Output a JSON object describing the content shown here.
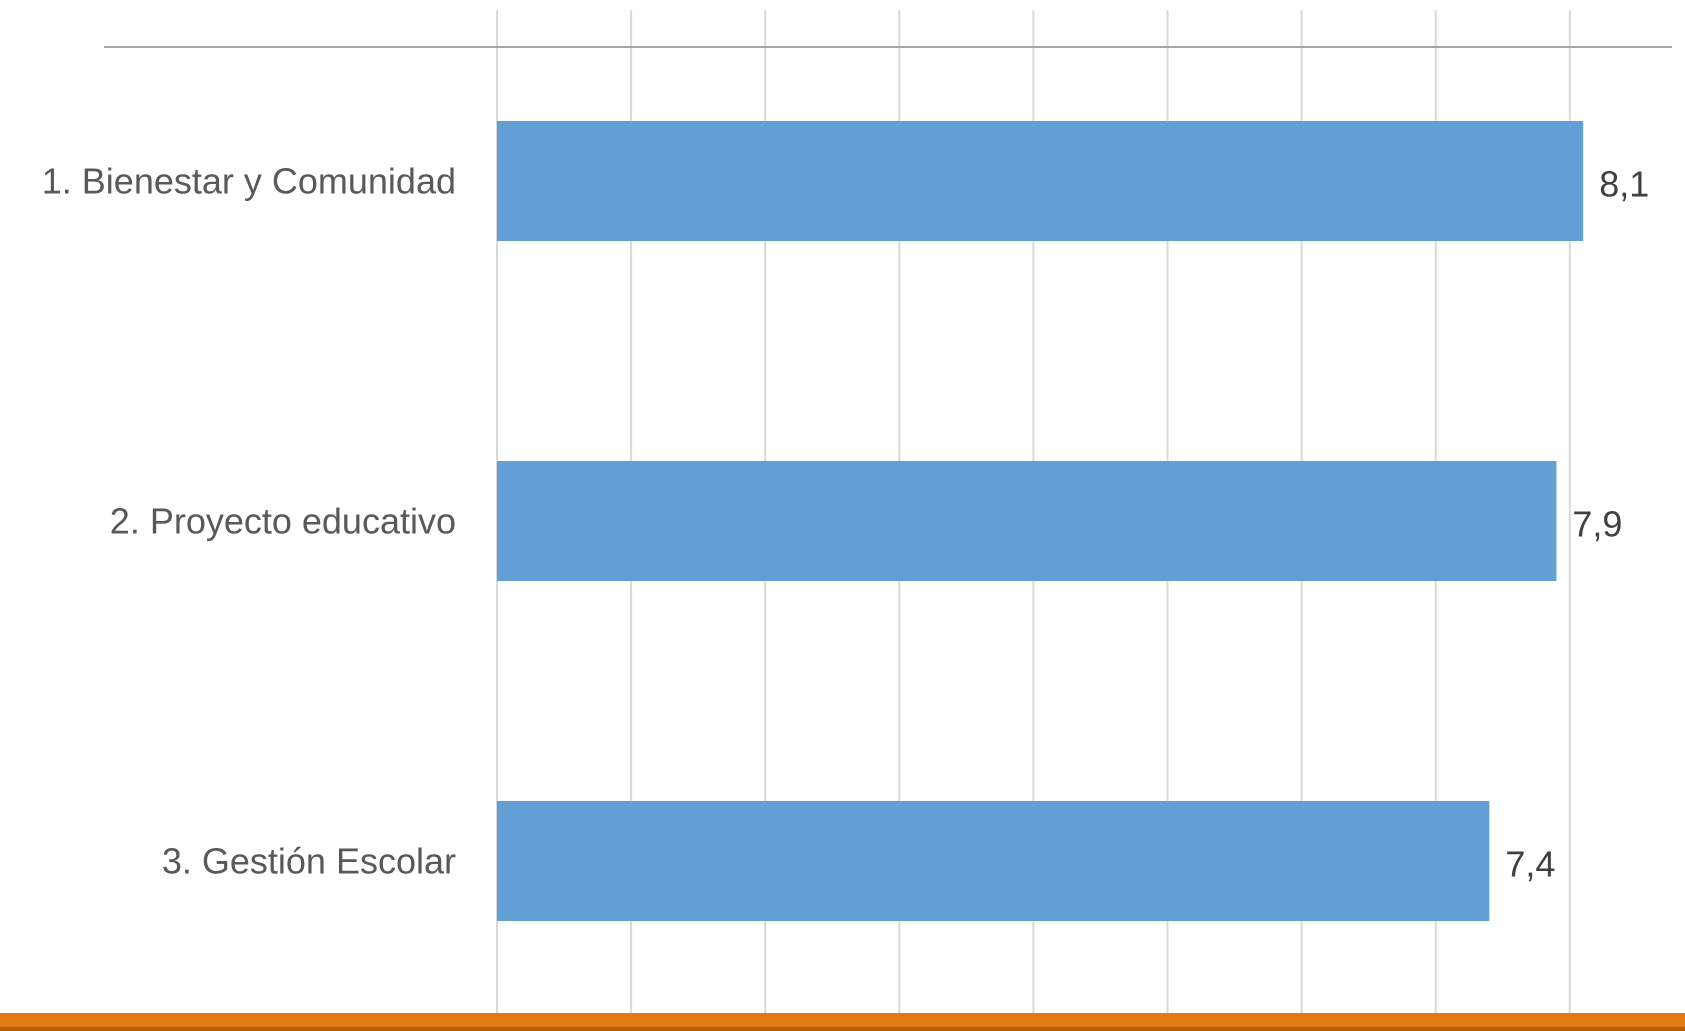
{
  "chart_data": {
    "type": "bar",
    "orientation": "horizontal",
    "categories": [
      "1. Bienestar y Comunidad",
      "2. Proyecto educativo",
      "3. Gestión Escolar"
    ],
    "values": [
      8.1,
      7.9,
      7.4
    ],
    "value_labels": [
      "8,1",
      "7,9",
      "7,4"
    ],
    "title": "",
    "xlabel": "",
    "ylabel": "",
    "xlim": [
      0,
      8.8
    ],
    "grid": true,
    "legend": "none",
    "colors": {
      "bar": "#629fd5",
      "grid": "#d9d9d9",
      "top_rule": "#a6a6a6",
      "footer_band": "#e17c14",
      "footer_edge": "#b85f0c"
    }
  }
}
